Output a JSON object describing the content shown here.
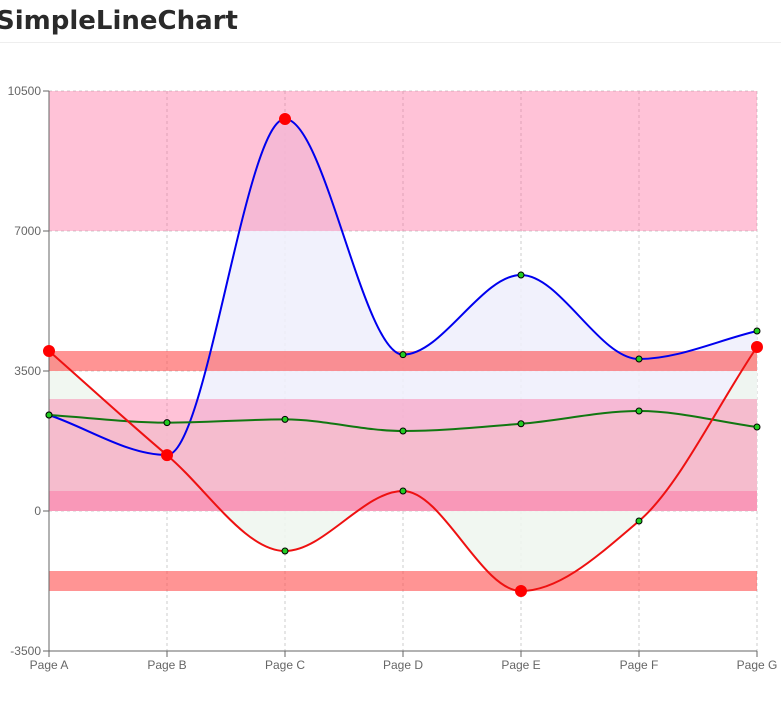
{
  "page": {
    "title": "SimpleLineChart"
  },
  "colors": {
    "series_blue": "#0000ee",
    "series_green": "#117711",
    "series_red": "#ee1111",
    "dot_fill": "#22cc22",
    "dot_red": "#ff0000",
    "band_pink": "#ff5e95",
    "band_red": "#ff4c4c",
    "area_blue": "#efeffb",
    "area_green": "#eef6ee",
    "grid": "#cccccc"
  },
  "chart_data": {
    "type": "area",
    "categories": [
      "Page A",
      "Page B",
      "Page C",
      "Page D",
      "Page E",
      "Page F",
      "Page G"
    ],
    "ylim": [
      -3500,
      10500
    ],
    "yticks": [
      -3500,
      0,
      3500,
      7000,
      10500
    ],
    "grid": true,
    "series": [
      {
        "color": "blue",
        "values": [
          2400,
          1400,
          9800,
          3908,
          5900,
          3800,
          4500
        ]
      },
      {
        "color": "green",
        "values": [
          2400,
          2210,
          2290,
          2000,
          2181,
          2500,
          2100
        ]
      },
      {
        "color": "red",
        "values": [
          4000,
          1398,
          -1000,
          500,
          -2000,
          -250,
          4100
        ]
      }
    ],
    "reference_areas": [
      {
        "y": [
          7000,
          10500
        ],
        "color": "pink"
      },
      {
        "y": [
          2000,
          2800
        ],
        "color": "pink"
      },
      {
        "y": [
          0,
          2000
        ],
        "color": "pink"
      },
      {
        "y": [
          0,
          500
        ],
        "color": "pink"
      },
      {
        "y": [
          3500,
          4000
        ],
        "color": "red"
      },
      {
        "y": [
          -1500,
          -2000
        ],
        "color": "red"
      }
    ]
  }
}
